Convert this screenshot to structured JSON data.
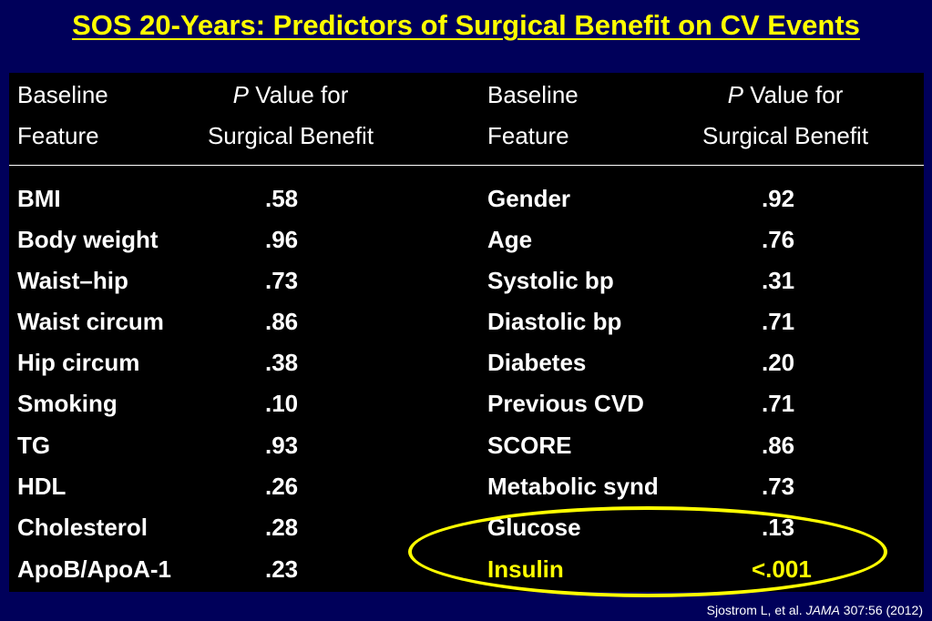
{
  "slide": {
    "title": "SOS 20-Years: Predictors of Surgical Benefit on CV Events"
  },
  "table": {
    "headers": {
      "feature_line1": "Baseline",
      "feature_line2": "Feature",
      "pvalue_italic": "P",
      "pvalue_line1_rest": " Value for",
      "pvalue_line2": "Surgical Benefit"
    },
    "left": [
      {
        "feature": "BMI",
        "p": ".58"
      },
      {
        "feature": "Body weight",
        "p": ".96"
      },
      {
        "feature": "Waist–hip",
        "p": ".73"
      },
      {
        "feature": "Waist circum",
        "p": ".86"
      },
      {
        "feature": "Hip circum",
        "p": ".38"
      },
      {
        "feature": "Smoking",
        "p": ".10"
      },
      {
        "feature": "TG",
        "p": ".93"
      },
      {
        "feature": "HDL",
        "p": ".26"
      },
      {
        "feature": "Cholesterol",
        "p": ".28"
      },
      {
        "feature": "ApoB/ApoA-1",
        "p": ".23"
      }
    ],
    "right": [
      {
        "feature": "Gender",
        "p": ".92"
      },
      {
        "feature": "Age",
        "p": ".76"
      },
      {
        "feature": "Systolic bp",
        "p": ".31"
      },
      {
        "feature": "Diastolic bp",
        "p": ".71"
      },
      {
        "feature": "Diabetes",
        "p": ".20"
      },
      {
        "feature": "Previous CVD",
        "p": ".71"
      },
      {
        "feature": "SCORE",
        "p": ".86"
      },
      {
        "feature": "Metabolic synd",
        "p": ".73"
      },
      {
        "feature": "Glucose",
        "p": ".13"
      },
      {
        "feature": "Insulin",
        "p": "<.001"
      }
    ]
  },
  "citation": {
    "authors": "Sjostrom L, et al. ",
    "journal": "JAMA",
    "details": " 307:56 (2012)"
  },
  "colors": {
    "background": "#00005a",
    "panel": "#000000",
    "title": "#ffff00",
    "highlight": "#ffff00",
    "text": "#ffffff"
  }
}
